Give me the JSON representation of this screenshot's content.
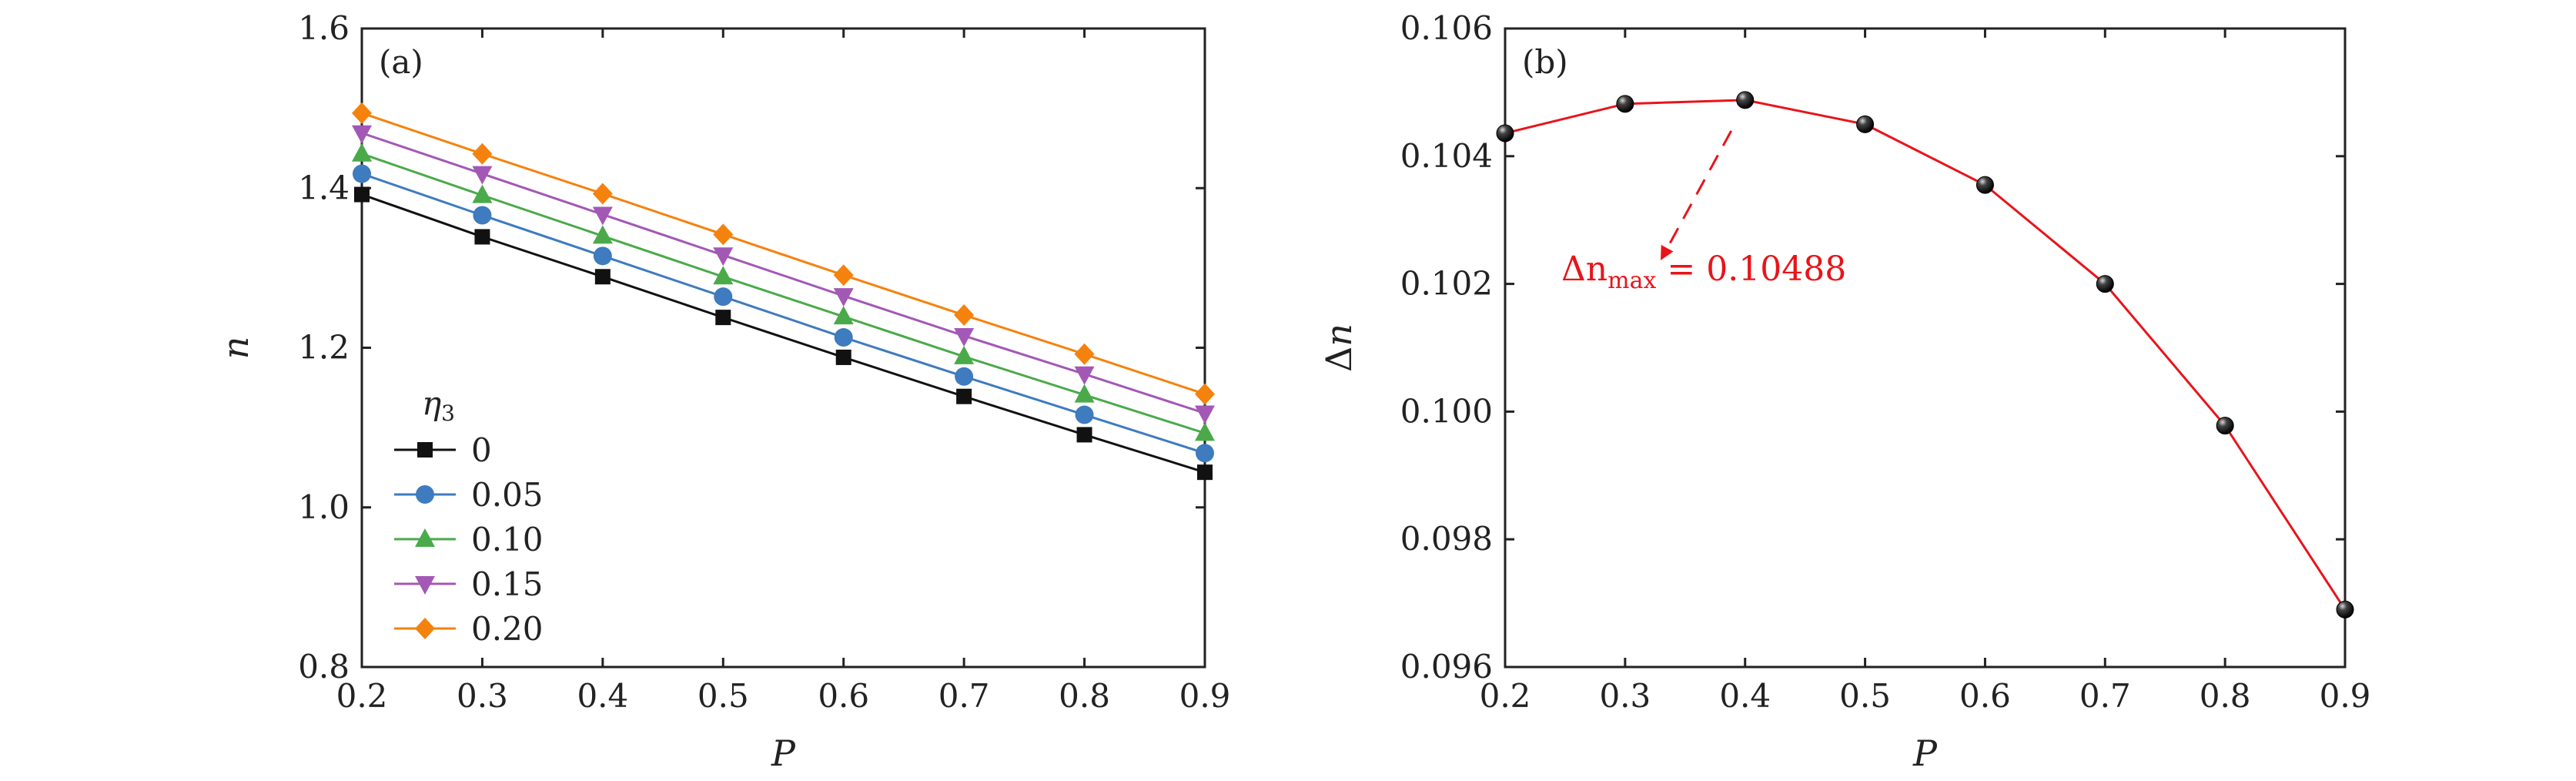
{
  "chart_data": [
    {
      "type": "line",
      "panel_label": "(a)",
      "xlabel": "P",
      "ylabel": "n",
      "xlim": [
        0.2,
        0.9
      ],
      "ylim": [
        0.8,
        1.6
      ],
      "xticks": [
        0.2,
        0.3,
        0.4,
        0.5,
        0.6,
        0.7,
        0.8,
        0.9
      ],
      "yticks": [
        0.8,
        1.0,
        1.2,
        1.4,
        1.6
      ],
      "xtick_labels": [
        "0.2",
        "0.3",
        "0.4",
        "0.5",
        "0.6",
        "0.7",
        "0.8",
        "0.9"
      ],
      "ytick_labels": [
        "0.8",
        "1.0",
        "1.2",
        "1.4",
        "1.6"
      ],
      "legend_title": "η3",
      "legend_location": "lower-left",
      "x": [
        0.2,
        0.3,
        0.4,
        0.5,
        0.6,
        0.7,
        0.8,
        0.9
      ],
      "series": [
        {
          "name": "0",
          "color": "#111111",
          "marker": "square",
          "values": [
            1.392,
            1.339,
            1.289,
            1.238,
            1.188,
            1.139,
            1.091,
            1.044
          ]
        },
        {
          "name": "0.05",
          "color": "#3e7bbf",
          "marker": "circle",
          "values": [
            1.418,
            1.366,
            1.315,
            1.264,
            1.213,
            1.164,
            1.116,
            1.068
          ]
        },
        {
          "name": "0.10",
          "color": "#4aaa4a",
          "marker": "triangle-up",
          "values": [
            1.443,
            1.391,
            1.34,
            1.289,
            1.239,
            1.189,
            1.141,
            1.093
          ]
        },
        {
          "name": "0.15",
          "color": "#a358b5",
          "marker": "triangle-down",
          "values": [
            1.469,
            1.418,
            1.367,
            1.316,
            1.265,
            1.215,
            1.167,
            1.118
          ]
        },
        {
          "name": "0.20",
          "color": "#f5820d",
          "marker": "diamond",
          "values": [
            1.494,
            1.443,
            1.393,
            1.342,
            1.291,
            1.241,
            1.192,
            1.142
          ]
        }
      ]
    },
    {
      "type": "line",
      "panel_label": "(b)",
      "xlabel": "P",
      "ylabel": "Δn",
      "xlim": [
        0.2,
        0.9
      ],
      "ylim": [
        0.096,
        0.106
      ],
      "xticks": [
        0.2,
        0.3,
        0.4,
        0.5,
        0.6,
        0.7,
        0.8,
        0.9
      ],
      "yticks": [
        0.096,
        0.098,
        0.1,
        0.102,
        0.104,
        0.106
      ],
      "xtick_labels": [
        "0.2",
        "0.3",
        "0.4",
        "0.5",
        "0.6",
        "0.7",
        "0.8",
        "0.9"
      ],
      "ytick_labels": [
        "0.096",
        "0.098",
        "0.100",
        "0.102",
        "0.104",
        "0.106"
      ],
      "x": [
        0.2,
        0.3,
        0.4,
        0.5,
        0.6,
        0.7,
        0.8,
        0.9
      ],
      "series": [
        {
          "name": "Δn",
          "color": "#e8141a",
          "marker_color": "#111111",
          "marker": "sphere",
          "values": [
            0.10436,
            0.10482,
            0.10488,
            0.1045,
            0.10355,
            0.102,
            0.09978,
            0.0969
          ]
        }
      ],
      "annotation": {
        "text_prefix": "Δn",
        "text_subscript": "max",
        "text_suffix": " = 0.10488",
        "target_x": 0.4,
        "target_y": 0.10488,
        "color": "#e8141a"
      }
    }
  ]
}
